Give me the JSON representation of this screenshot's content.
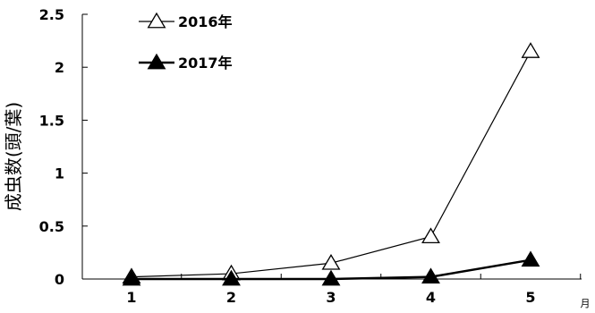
{
  "chart_data": {
    "type": "line",
    "title": "",
    "ylabel": "成虫数(頭/葉)",
    "xlabel": "",
    "x_unit": "月",
    "categories": [
      "1",
      "2",
      "3",
      "4",
      "5"
    ],
    "x": [
      1,
      2,
      3,
      4,
      5
    ],
    "ylim": [
      0,
      2.5
    ],
    "y_ticks": [
      "0",
      "0.5",
      "1",
      "1.5",
      "2",
      "2.5"
    ],
    "grid": false,
    "legend_position": "top-left",
    "series": [
      {
        "name": "2016年",
        "marker": "open-triangle",
        "color": "#000000",
        "values": [
          0.02,
          0.05,
          0.15,
          0.4,
          2.15
        ]
      },
      {
        "name": "2017年",
        "marker": "filled-triangle",
        "color": "#000000",
        "values": [
          0.0,
          0.0,
          0.0,
          0.02,
          0.18
        ]
      }
    ]
  }
}
